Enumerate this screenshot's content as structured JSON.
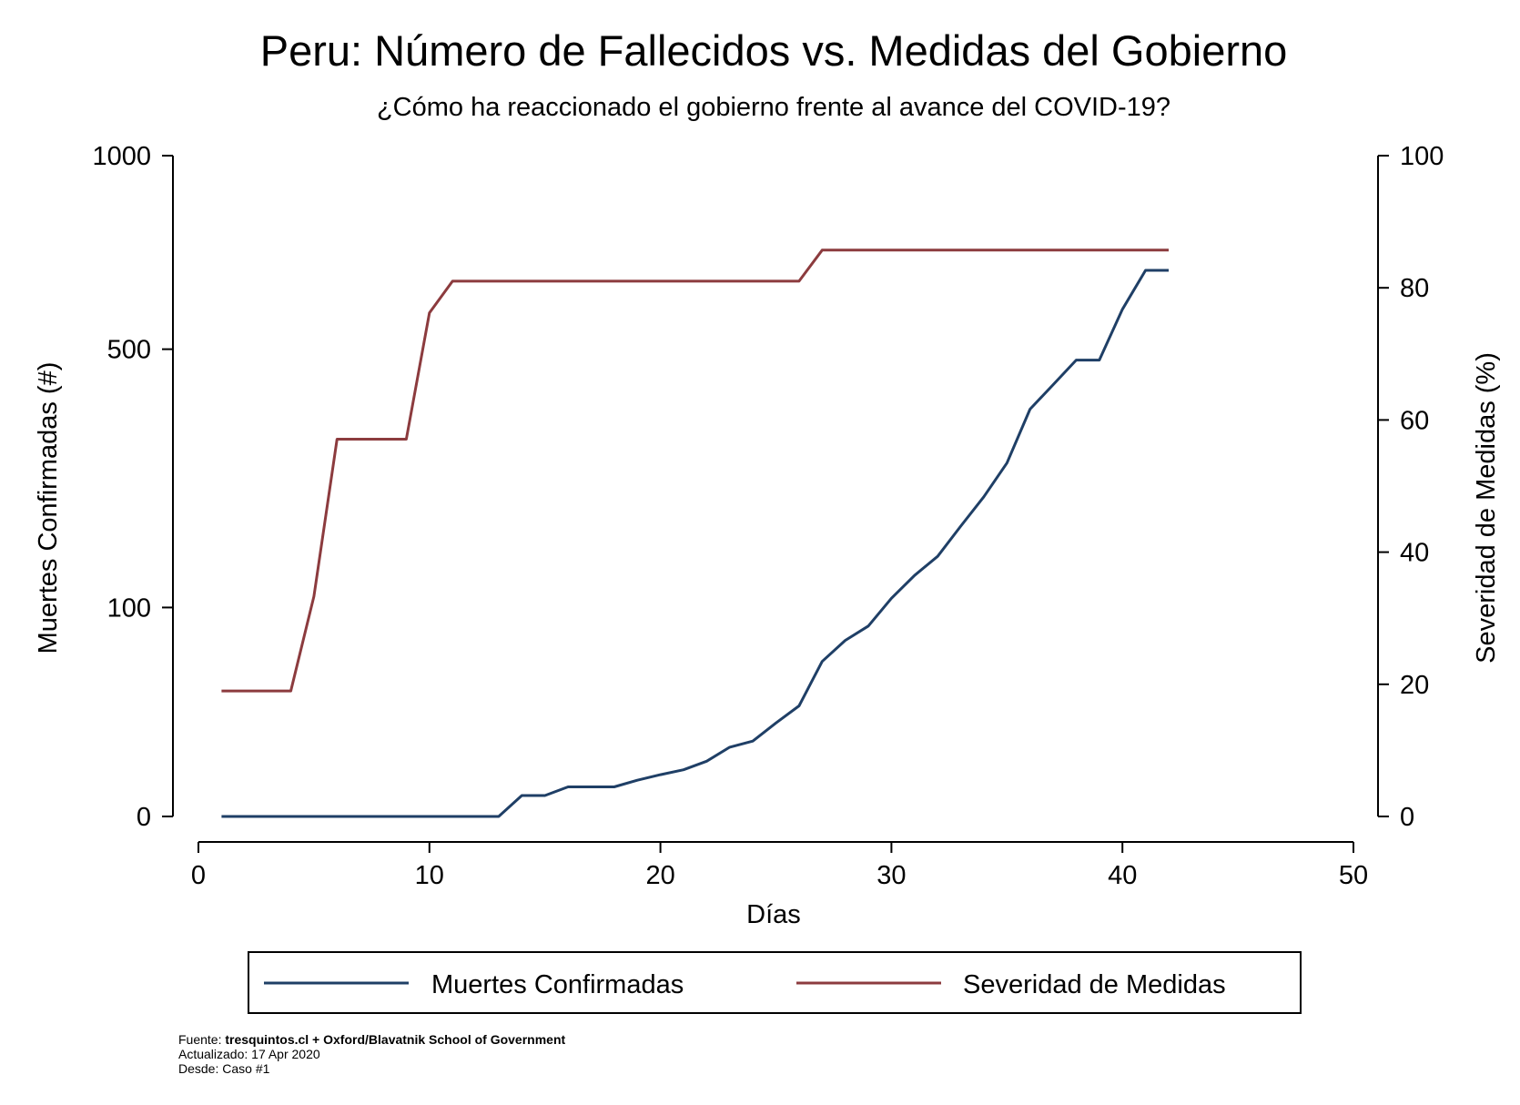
{
  "chart_data": {
    "type": "line",
    "title": "Peru: Número de Fallecidos vs. Medidas del Gobierno",
    "subtitle": "¿Cómo ha reaccionado el gobierno frente al avance del COVID-19?",
    "xlabel": "Días",
    "ylabel_left": "Muertes Confirmadas (#)",
    "ylabel_right": "Severidad de Medidas (%)",
    "xlim": [
      0,
      50
    ],
    "x_ticks": [
      0,
      10,
      20,
      30,
      40,
      50
    ],
    "y_left_ticks": [
      0,
      100,
      500,
      1000
    ],
    "y_left_scale": "sqrt",
    "y_left_range": [
      0,
      1000
    ],
    "y_right_ticks": [
      0,
      20,
      40,
      60,
      80,
      100
    ],
    "y_right_range": [
      0,
      100
    ],
    "grid": false,
    "legend_position": "bottom",
    "series": [
      {
        "name": "Muertes Confirmadas",
        "axis": "left",
        "color": "#1f3f66",
        "x": [
          1,
          2,
          3,
          4,
          5,
          6,
          7,
          8,
          9,
          10,
          11,
          12,
          13,
          14,
          15,
          16,
          17,
          18,
          19,
          20,
          21,
          22,
          23,
          24,
          25,
          26,
          27,
          28,
          29,
          30,
          31,
          32,
          33,
          34,
          35,
          36,
          37,
          38,
          39,
          40,
          41,
          42
        ],
        "values": [
          0,
          0,
          0,
          0,
          0,
          0,
          0,
          0,
          0,
          0,
          0,
          0,
          0,
          1,
          1,
          2,
          2,
          2,
          3,
          4,
          5,
          7,
          11,
          13,
          20,
          28,
          55,
          71,
          83,
          109,
          133,
          155,
          193,
          234,
          286,
          380,
          427,
          477,
          477,
          589,
          683,
          683
        ]
      },
      {
        "name": "Severidad de Medidas",
        "axis": "right",
        "color": "#8c3b3e",
        "x": [
          1,
          2,
          3,
          4,
          5,
          6,
          7,
          8,
          9,
          10,
          11,
          12,
          13,
          14,
          15,
          16,
          17,
          18,
          19,
          20,
          21,
          22,
          23,
          24,
          25,
          26,
          27,
          28,
          29,
          30,
          31,
          32,
          33,
          34,
          35,
          36,
          37,
          38,
          39,
          40,
          41,
          42
        ],
        "values": [
          19,
          19,
          19,
          19,
          33.3,
          57.1,
          57.1,
          57.1,
          57.1,
          76.2,
          81,
          81,
          81,
          81,
          81,
          81,
          81,
          81,
          81,
          81,
          81,
          81,
          81,
          81,
          81,
          81,
          85.7,
          85.7,
          85.7,
          85.7,
          85.7,
          85.7,
          85.7,
          85.7,
          85.7,
          85.7,
          85.7,
          85.7,
          85.7,
          85.7,
          85.7,
          85.7
        ]
      }
    ]
  },
  "footer": {
    "source_label": "Fuente:",
    "source_value": "tresquintos.cl + Oxford/Blavatnik School of Government",
    "updated": "Actualizado: 17 Apr 2020",
    "since": "Desde: Caso #1"
  }
}
